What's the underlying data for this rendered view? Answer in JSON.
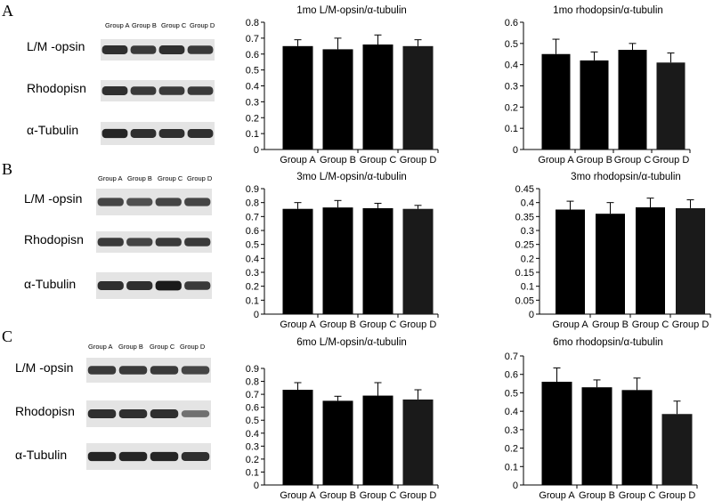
{
  "panels": [
    {
      "letter": "A",
      "blot": {
        "lanes": [
          "Group A",
          "Group B",
          "Group C",
          "Group D"
        ],
        "rows": [
          {
            "label": "L/M -opsin",
            "intensity": [
              0.85,
              0.8,
              0.85,
              0.8
            ]
          },
          {
            "label": "Rhodopisn",
            "intensity": [
              0.85,
              0.8,
              0.8,
              0.8
            ]
          },
          {
            "label": "α-Tubulin",
            "intensity": [
              0.9,
              0.85,
              0.85,
              0.85
            ]
          }
        ]
      },
      "charts": [
        {
          "type": "bar",
          "title": "1mo L/M-opsin/α-tubulin",
          "categories": [
            "Group A",
            "Group B",
            "Group C",
            "Group D"
          ],
          "values": [
            0.65,
            0.63,
            0.66,
            0.65
          ],
          "errors": [
            0.04,
            0.07,
            0.06,
            0.04
          ],
          "ylim": [
            0,
            0.8
          ],
          "yticks": [
            "0",
            "0.1",
            "0.2",
            "0.3",
            "0.4",
            "0.5",
            "0.6",
            "0.7",
            "0.8"
          ],
          "grid": false
        },
        {
          "type": "bar",
          "title": "1mo rhodopsin/α-tubulin",
          "categories": [
            "Group A",
            "Group B",
            "Group C",
            "Group D"
          ],
          "values": [
            0.45,
            0.42,
            0.47,
            0.41
          ],
          "errors": [
            0.07,
            0.04,
            0.03,
            0.045
          ],
          "ylim": [
            0,
            0.6
          ],
          "yticks": [
            "0",
            "0.1",
            "0.2",
            "0.3",
            "0.4",
            "0.5",
            "0.6"
          ],
          "grid": false
        }
      ]
    },
    {
      "letter": "B",
      "blot": {
        "lanes": [
          "Group A",
          "Group B",
          "Group C",
          "Group D"
        ],
        "rows": [
          {
            "label": "L/M -opsin",
            "intensity": [
              0.75,
              0.7,
              0.75,
              0.75
            ]
          },
          {
            "label": "Rhodopisn",
            "intensity": [
              0.8,
              0.75,
              0.8,
              0.8
            ]
          },
          {
            "label": "α-Tubulin",
            "intensity": [
              0.85,
              0.85,
              0.95,
              0.8
            ]
          }
        ]
      },
      "charts": [
        {
          "type": "bar",
          "title": "3mo L/M-opsin/α-tubulin",
          "categories": [
            "Group A",
            "Group B",
            "Group C",
            "Group D"
          ],
          "values": [
            0.755,
            0.765,
            0.76,
            0.755
          ],
          "errors": [
            0.045,
            0.05,
            0.035,
            0.025
          ],
          "ylim": [
            0,
            0.9
          ],
          "yticks": [
            "0",
            "0.1",
            "0.2",
            "0.3",
            "0.4",
            "0.5",
            "0.6",
            "0.7",
            "0.8",
            "0.9"
          ],
          "grid": false
        },
        {
          "type": "bar",
          "title": "3mo rhodopsin/α-tubulin",
          "categories": [
            "Group A",
            "Group B",
            "Group C",
            "Group D"
          ],
          "values": [
            0.375,
            0.36,
            0.383,
            0.38
          ],
          "errors": [
            0.03,
            0.04,
            0.033,
            0.03
          ],
          "ylim": [
            0,
            0.45
          ],
          "yticks": [
            "0",
            "0.05",
            "0.1",
            "0.15",
            "0.2",
            "0.25",
            "0.3",
            "0.35",
            "0.4",
            "0.45"
          ],
          "grid": false
        }
      ]
    },
    {
      "letter": "C",
      "blot": {
        "lanes": [
          "Group A",
          "Group B",
          "Group C",
          "Group D"
        ],
        "rows": [
          {
            "label": "L/M -opsin",
            "intensity": [
              0.8,
              0.8,
              0.8,
              0.75
            ]
          },
          {
            "label": "Rhodopisn",
            "intensity": [
              0.85,
              0.85,
              0.85,
              0.55
            ]
          },
          {
            "label": "α-Tubulin",
            "intensity": [
              0.9,
              0.9,
              0.9,
              0.85
            ]
          }
        ]
      },
      "charts": [
        {
          "type": "bar",
          "title": "6mo L/M-opsin/α-tubulin",
          "categories": [
            "Group A",
            "Group B",
            "Group C",
            "Group D"
          ],
          "values": [
            0.735,
            0.65,
            0.69,
            0.66
          ],
          "errors": [
            0.055,
            0.035,
            0.1,
            0.075
          ],
          "ylim": [
            0,
            0.9
          ],
          "yticks": [
            "0",
            "0.1",
            "0.2",
            "0.3",
            "0.4",
            "0.5",
            "0.6",
            "0.7",
            "0.8",
            "0.9"
          ],
          "grid": false
        },
        {
          "type": "bar",
          "title": "6mo rhodopsin/α-tubulin",
          "categories": [
            "Group A",
            "Group B",
            "Group C",
            "Group D"
          ],
          "values": [
            0.56,
            0.53,
            0.515,
            0.385
          ],
          "errors": [
            0.075,
            0.04,
            0.065,
            0.07
          ],
          "ylim": [
            0,
            0.7
          ],
          "yticks": [
            "0",
            "0.1",
            "0.2",
            "0.3",
            "0.4",
            "0.5",
            "0.6",
            "0.7"
          ],
          "grid": false
        }
      ]
    }
  ]
}
